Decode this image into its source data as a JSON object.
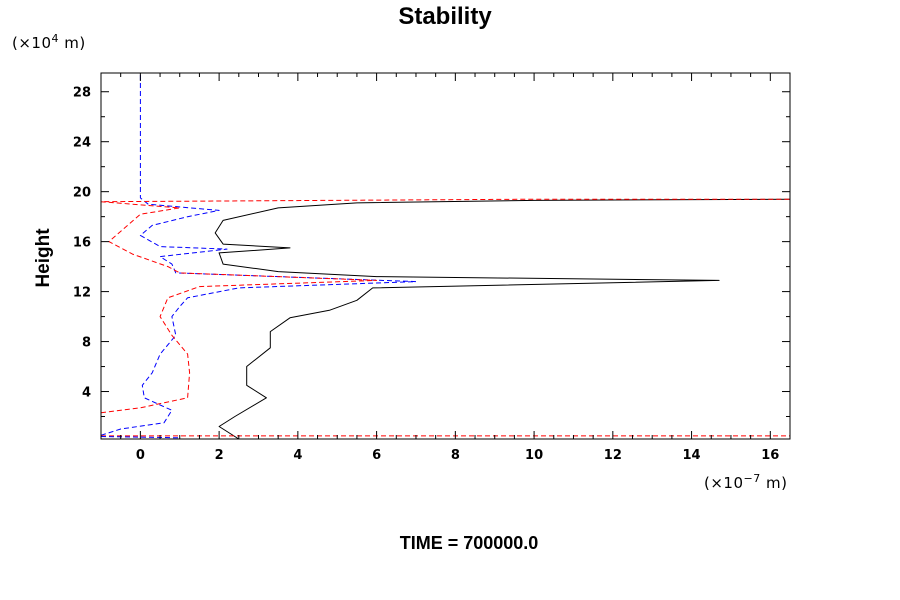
{
  "chart_data": {
    "type": "line",
    "title": "Stability",
    "ylabel": "Height",
    "xlabel": "",
    "y_unit": {
      "prefix": "(×10",
      "exp": "4",
      "suffix": " m)"
    },
    "x_unit": {
      "prefix": "(×10",
      "exp": "−7",
      "suffix": " m)"
    },
    "xlim": [
      -1.0,
      16.5
    ],
    "ylim": [
      0.2,
      29.5
    ],
    "xticks": [
      0,
      2,
      4,
      6,
      8,
      10,
      12,
      14,
      16
    ],
    "xtick_labels": [
      "0",
      "2",
      "4",
      "6",
      "8",
      "10",
      "12",
      "14",
      "16"
    ],
    "yticks": [
      4,
      8,
      12,
      16,
      20,
      24,
      28
    ],
    "ytick_labels": [
      "4",
      "8",
      "12",
      "16",
      "20",
      "24",
      "28"
    ],
    "grid": false,
    "series": [
      {
        "color": "#000000",
        "dash": "solid",
        "points": [
          [
            2.5,
            0.2
          ],
          [
            2.2,
            0.8
          ],
          [
            2.0,
            1.2
          ],
          [
            2.4,
            2.0
          ],
          [
            3.2,
            3.5
          ],
          [
            2.7,
            4.5
          ],
          [
            2.7,
            6.0
          ],
          [
            3.3,
            7.5
          ],
          [
            3.3,
            8.8
          ],
          [
            3.8,
            9.9
          ],
          [
            4.8,
            10.5
          ],
          [
            5.5,
            11.3
          ],
          [
            5.9,
            12.3
          ],
          [
            14.7,
            12.9
          ],
          [
            6.0,
            13.2
          ],
          [
            3.5,
            13.6
          ],
          [
            2.1,
            14.2
          ],
          [
            2.0,
            15.1
          ],
          [
            3.8,
            15.5
          ],
          [
            2.1,
            15.8
          ],
          [
            1.9,
            16.7
          ],
          [
            2.1,
            17.7
          ],
          [
            3.5,
            18.7
          ],
          [
            5.5,
            19.1
          ],
          [
            10.0,
            19.3
          ],
          [
            16.5,
            19.4
          ]
        ]
      },
      {
        "color": "#0000ff",
        "dash": "dashed",
        "points": [
          [
            -1.0,
            0.5
          ],
          [
            -0.5,
            1.0
          ],
          [
            0.6,
            1.5
          ],
          [
            0.8,
            2.5
          ],
          [
            0.1,
            3.5
          ],
          [
            0.05,
            4.5
          ],
          [
            0.3,
            5.5
          ],
          [
            0.5,
            7.0
          ],
          [
            0.9,
            8.5
          ],
          [
            0.8,
            10.0
          ],
          [
            1.0,
            10.8
          ],
          [
            1.2,
            11.5
          ],
          [
            2.5,
            12.3
          ],
          [
            7.0,
            12.8
          ],
          [
            0.9,
            13.5
          ],
          [
            0.8,
            14.2
          ],
          [
            0.5,
            14.8
          ],
          [
            2.2,
            15.4
          ],
          [
            0.5,
            15.6
          ],
          [
            0.0,
            16.5
          ],
          [
            0.3,
            17.3
          ],
          [
            1.2,
            18.0
          ],
          [
            2.0,
            18.5
          ],
          [
            0.2,
            19.0
          ],
          [
            0.0,
            19.5
          ],
          [
            0.0,
            29.5
          ]
        ]
      },
      {
        "color": "#ff0000",
        "dash": "dashed",
        "points": [
          [
            -1.0,
            2.3
          ],
          [
            0.0,
            2.7
          ],
          [
            1.2,
            3.5
          ],
          [
            1.25,
            5.5
          ],
          [
            1.2,
            7.0
          ],
          [
            0.8,
            8.5
          ],
          [
            0.5,
            10.0
          ],
          [
            0.7,
            11.5
          ],
          [
            1.5,
            12.4
          ],
          [
            6.0,
            12.9
          ],
          [
            1.0,
            13.5
          ],
          [
            0.7,
            14.0
          ],
          [
            -0.2,
            15.0
          ],
          [
            -0.8,
            16.0
          ],
          [
            0.0,
            18.2
          ],
          [
            1.0,
            18.7
          ],
          [
            -1.0,
            19.2
          ],
          [
            10.0,
            19.4
          ],
          [
            16.5,
            19.4
          ]
        ]
      },
      {
        "color": "#ff0000",
        "dash": "dashed",
        "points": [
          [
            -1.0,
            0.45
          ],
          [
            16.5,
            0.45
          ]
        ]
      },
      {
        "color": "#0000ff",
        "dash": "dashed",
        "points": [
          [
            -1.0,
            0.4
          ],
          [
            1.0,
            0.3
          ]
        ]
      }
    ]
  },
  "footer": {
    "time_text": "TIME = 700000.0"
  }
}
